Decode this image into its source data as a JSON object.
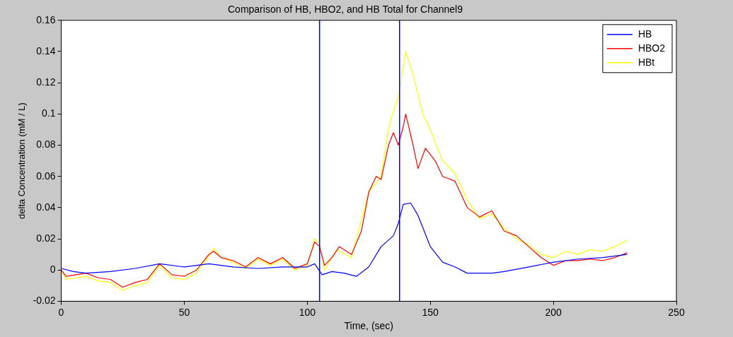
{
  "chart_data": {
    "type": "line",
    "title": "Comparison of HB, HBO2, and HB Total for Channel9",
    "xlabel": "Time, (sec)",
    "ylabel": "delta Concentration (mM / L)",
    "xlim": [
      0,
      250
    ],
    "xticks": [
      0,
      50,
      100,
      150,
      200,
      250
    ],
    "ylim": [
      -0.02,
      0.16
    ],
    "yticks": [
      -0.02,
      0,
      0.02,
      0.04,
      0.06,
      0.08,
      0.1,
      0.12,
      0.14,
      0.16
    ],
    "grid": false,
    "legend": "top right",
    "marker": "none",
    "line_style": "solid",
    "ref_lines": [
      {
        "axis": "x",
        "value": 105,
        "color": "#0000ff"
      },
      {
        "axis": "x",
        "value": 137.5,
        "color": "#0000ff"
      }
    ],
    "series": [
      {
        "name": "HB",
        "color": "#0000ff",
        "x": [
          0,
          5,
          10,
          20,
          30,
          40,
          50,
          60,
          70,
          80,
          90,
          100,
          103,
          106,
          110,
          115,
          120,
          125,
          130,
          135,
          137,
          139,
          142,
          145,
          150,
          155,
          160,
          165,
          175,
          180,
          190,
          200,
          210,
          220,
          230
        ],
        "values": [
          0.001,
          -0.001,
          -0.002,
          -0.001,
          0.001,
          0.004,
          0.002,
          0.004,
          0.002,
          0.001,
          0.002,
          0.002,
          0.004,
          -0.003,
          -0.001,
          -0.002,
          -0.004,
          0.002,
          0.015,
          0.022,
          0.03,
          0.042,
          0.043,
          0.035,
          0.015,
          0.005,
          0.002,
          -0.002,
          -0.002,
          -0.001,
          0.002,
          0.005,
          0.007,
          0.008,
          0.01
        ]
      },
      {
        "name": "HBO2",
        "color": "#ff0000",
        "x": [
          0,
          2,
          10,
          15,
          20,
          25,
          30,
          35,
          40,
          45,
          50,
          55,
          60,
          62,
          65,
          70,
          75,
          80,
          85,
          90,
          95,
          100,
          103,
          105,
          107,
          110,
          113,
          118,
          122,
          125,
          128,
          130,
          133,
          135,
          137,
          139,
          140,
          143,
          145,
          148,
          152,
          155,
          160,
          165,
          170,
          175,
          180,
          185,
          190,
          195,
          200,
          205,
          210,
          215,
          220,
          225,
          230
        ],
        "values": [
          0,
          -0.004,
          -0.002,
          -0.005,
          -0.006,
          -0.011,
          -0.008,
          -0.006,
          0.004,
          -0.003,
          -0.004,
          0,
          0.01,
          0.012,
          0.008,
          0.006,
          0.002,
          0.008,
          0.004,
          0.008,
          0.001,
          0.004,
          0.018,
          0.015,
          0.003,
          0.008,
          0.015,
          0.01,
          0.025,
          0.05,
          0.06,
          0.058,
          0.08,
          0.088,
          0.08,
          0.092,
          0.1,
          0.08,
          0.065,
          0.078,
          0.07,
          0.06,
          0.057,
          0.04,
          0.034,
          0.038,
          0.025,
          0.022,
          0.015,
          0.008,
          0.003,
          0.006,
          0.006,
          0.007,
          0.006,
          0.008,
          0.011
        ]
      },
      {
        "name": "HBt",
        "color": "#ffff00",
        "x": [
          0,
          2,
          10,
          15,
          20,
          25,
          30,
          35,
          40,
          45,
          50,
          55,
          60,
          62,
          65,
          70,
          75,
          80,
          85,
          90,
          95,
          100,
          103,
          105,
          107,
          112,
          118,
          125,
          130,
          133,
          135,
          137,
          138,
          140,
          143,
          147,
          150,
          155,
          160,
          165,
          170,
          175,
          180,
          185,
          190,
          195,
          200,
          205,
          210,
          215,
          220,
          225,
          230
        ],
        "values": [
          0,
          -0.006,
          -0.004,
          -0.007,
          -0.008,
          -0.013,
          -0.01,
          -0.008,
          0.003,
          -0.005,
          -0.006,
          -0.002,
          0.009,
          0.014,
          0.008,
          0.005,
          0.001,
          0.007,
          0.003,
          0.007,
          0,
          0.003,
          0.02,
          0.017,
          0,
          0.013,
          0.008,
          0.05,
          0.06,
          0.09,
          0.102,
          0.11,
          0.12,
          0.14,
          0.125,
          0.1,
          0.09,
          0.07,
          0.062,
          0.045,
          0.033,
          0.036,
          0.027,
          0.02,
          0.016,
          0.01,
          0.008,
          0.012,
          0.01,
          0.013,
          0.012,
          0.015,
          0.019
        ]
      }
    ]
  }
}
